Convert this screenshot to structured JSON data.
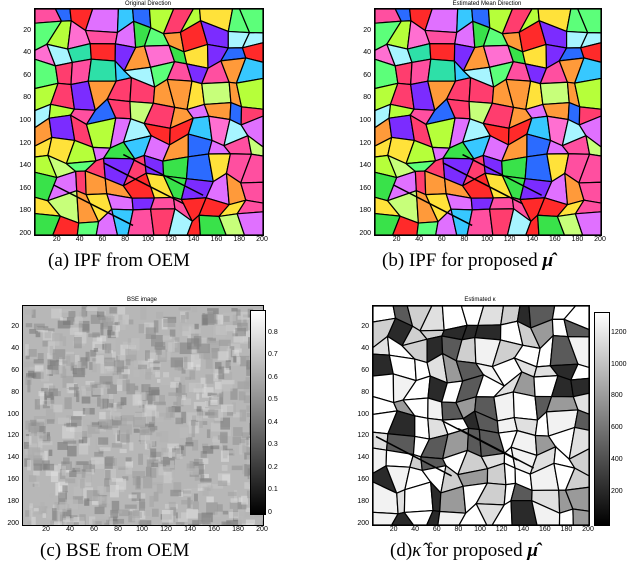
{
  "panels": {
    "a": {
      "title": "Original Direction",
      "caption": "(a) IPF from OEM"
    },
    "b": {
      "title": "Estimated Mean Direction",
      "caption_prefix": "(b) IPF for proposed ",
      "caption_symbol": "μ̂"
    },
    "c": {
      "title": "BSE image",
      "caption": "(c) BSE from OEM",
      "colorbar_ticks": [
        "0.8",
        "0.7",
        "0.6",
        "0.5",
        "0.4",
        "0.3",
        "0.2",
        "0.1",
        "0"
      ]
    },
    "d": {
      "title": "Estimated κ",
      "caption_prefix": "(d)",
      "caption_kappa": "κ̂",
      "caption_middle": " for proposed ",
      "caption_symbol": "μ̂",
      "colorbar_ticks": [
        "1200",
        "1000",
        "800",
        "600",
        "400",
        "200"
      ]
    }
  },
  "axes": {
    "y_ticks": [
      "20",
      "40",
      "60",
      "80",
      "100",
      "120",
      "140",
      "160",
      "180",
      "200"
    ],
    "x_ticks": [
      "20",
      "40",
      "60",
      "80",
      "100",
      "120",
      "140",
      "160",
      "180",
      "200"
    ]
  }
}
